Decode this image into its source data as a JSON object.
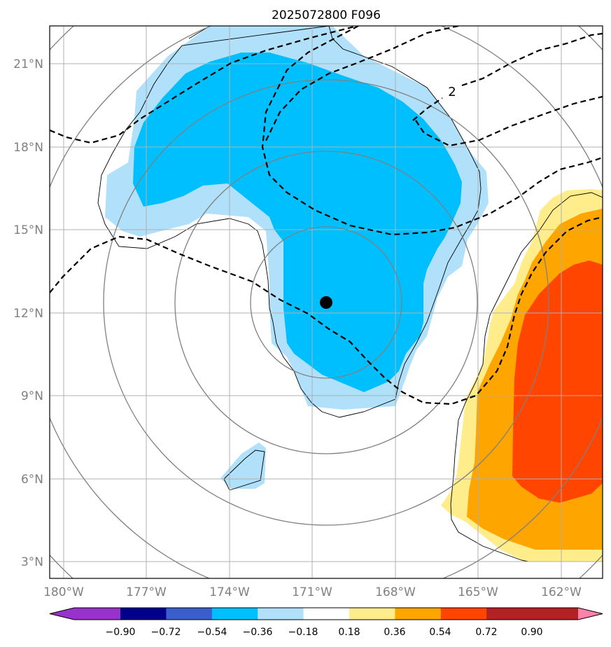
{
  "chart_data": {
    "type": "map",
    "title": "2025072800 F096",
    "x_ticks": [
      "180°W",
      "177°W",
      "174°W",
      "171°W",
      "168°W",
      "165°W",
      "162°W"
    ],
    "x_tick_values": [
      -180,
      -177,
      -174,
      -171,
      -168,
      -165,
      -162
    ],
    "y_ticks": [
      "3°N",
      "6°N",
      "9°N",
      "12°N",
      "15°N",
      "18°N",
      "21°N"
    ],
    "y_tick_values": [
      3,
      6,
      9,
      12,
      15,
      18,
      21
    ],
    "xlim": [
      -180.5,
      -160.5
    ],
    "ylim": [
      2.4,
      22.3
    ],
    "grid": true,
    "center_marker": {
      "lon": -170.5,
      "lat": 12.4,
      "color": "#000000"
    },
    "range_rings_color": "#808080",
    "contour_labels": [
      {
        "text": "2",
        "lon": -165.4,
        "lat": 19.9
      }
    ],
    "colorbar": {
      "levels": [
        "−0.90",
        "−0.72",
        "−0.54",
        "−0.36",
        "−0.18",
        "0.18",
        "0.36",
        "0.54",
        "0.72",
        "0.90"
      ],
      "colors": [
        "#9932cc",
        "#00008b",
        "#3a5fcd",
        "#00bfff",
        "#b0e0fa",
        "#ffffff",
        "#ffec8b",
        "#ffa500",
        "#ff4500",
        "#b22222",
        "#ff82ab"
      ],
      "extend": "both"
    }
  }
}
